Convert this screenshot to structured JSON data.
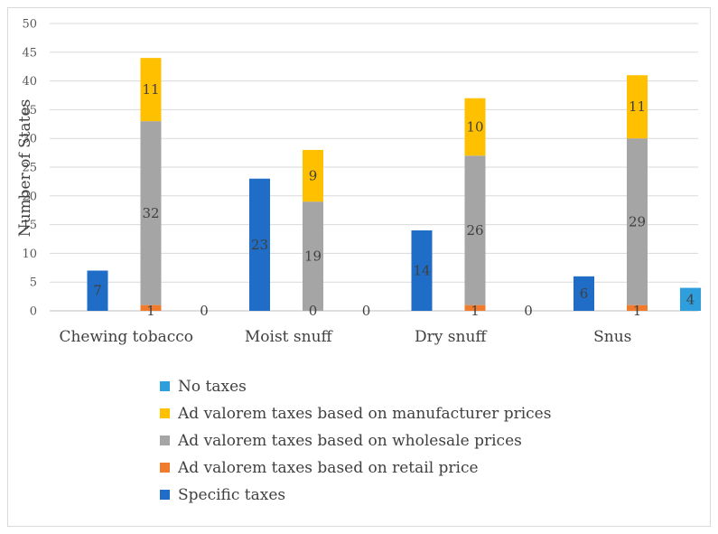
{
  "chart_data": {
    "type": "bar",
    "title": "",
    "xlabel": "",
    "ylabel": "Number of States",
    "ylim": [
      0,
      50
    ],
    "yticks": [
      0,
      5,
      10,
      15,
      20,
      25,
      30,
      35,
      40,
      45,
      50
    ],
    "categories": [
      "Chewing tobacco",
      "Moist snuff",
      "Dry snuff",
      "Snus"
    ],
    "series": [
      {
        "name": "Specific taxes",
        "color": "#1f6dc6",
        "values": [
          7,
          23,
          14,
          6
        ],
        "labels": [
          "7",
          "23",
          "14",
          "6"
        ]
      },
      {
        "name": "Ad valorem taxes based on retail price",
        "color": "#f07b2c",
        "values": [
          1,
          0,
          1,
          1
        ],
        "labels": [
          "1",
          "0",
          "1",
          "1"
        ]
      },
      {
        "name": "Ad valorem taxes based on wholesale prices",
        "color": "#a5a5a5",
        "values": [
          32,
          19,
          26,
          29
        ],
        "labels": [
          "32",
          "19",
          "26",
          "29"
        ]
      },
      {
        "name": "Ad valorem taxes based on manufacturer prices",
        "color": "#ffc000",
        "values": [
          11,
          9,
          10,
          11
        ],
        "labels": [
          "11",
          "9",
          "10",
          "11"
        ]
      },
      {
        "name": "No taxes",
        "color": "#2e9fdc",
        "values": [
          0,
          0,
          0,
          4
        ],
        "labels": [
          "0",
          "0",
          "0",
          "4"
        ]
      }
    ],
    "legend_order": [
      "No taxes",
      "Ad valorem taxes based on manufacturer prices",
      "Ad valorem taxes based on wholesale prices",
      "Ad valorem taxes based on retail price",
      "Specific taxes"
    ],
    "legend_position": "bottom",
    "grid": true
  }
}
